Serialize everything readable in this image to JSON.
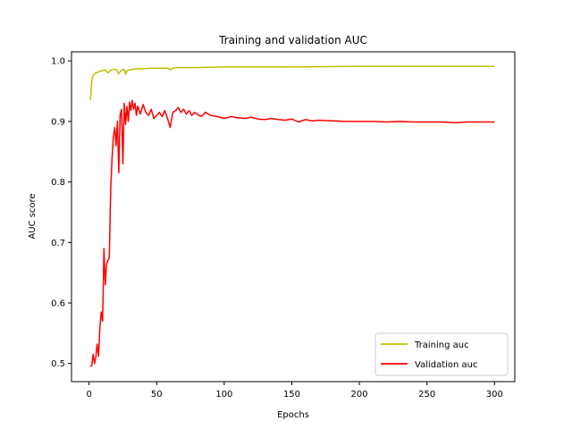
{
  "chart_data": {
    "type": "line",
    "title": "Training and validation AUC",
    "xlabel": "Epochs",
    "ylabel": "AUC score",
    "xlim": [
      -13,
      315
    ],
    "ylim": [
      0.47,
      1.015
    ],
    "xticks": [
      0,
      50,
      100,
      150,
      200,
      250,
      300
    ],
    "yticks": [
      0.5,
      0.6,
      0.7,
      0.8,
      0.9,
      1.0
    ],
    "ytick_labels": [
      "0.5",
      "0.6",
      "0.7",
      "0.8",
      "0.9",
      "1.0"
    ],
    "grid": false,
    "legend_position": "lower right",
    "series": [
      {
        "name": "Training auc",
        "color": "#bfbf00",
        "x": [
          1,
          2,
          3,
          4,
          5,
          6,
          8,
          10,
          12,
          14,
          16,
          18,
          20,
          22,
          24,
          26,
          27,
          28,
          30,
          32,
          35,
          40,
          45,
          50,
          55,
          58,
          60,
          62,
          65,
          80,
          100,
          150,
          200,
          250,
          300
        ],
        "y": [
          0.935,
          0.968,
          0.976,
          0.979,
          0.98,
          0.981,
          0.983,
          0.984,
          0.985,
          0.98,
          0.985,
          0.986,
          0.986,
          0.979,
          0.985,
          0.986,
          0.978,
          0.984,
          0.985,
          0.986,
          0.987,
          0.987,
          0.988,
          0.988,
          0.988,
          0.988,
          0.985,
          0.988,
          0.989,
          0.989,
          0.99,
          0.99,
          0.991,
          0.991,
          0.991
        ]
      },
      {
        "name": "Validation auc",
        "color": "#ff0000",
        "x": [
          1,
          2,
          3,
          4,
          5,
          6,
          7,
          8,
          9,
          10,
          11,
          12,
          13,
          14,
          15,
          16,
          17,
          18,
          19,
          20,
          21,
          22,
          23,
          24,
          25,
          26,
          27,
          28,
          29,
          30,
          31,
          32,
          33,
          34,
          35,
          36,
          38,
          40,
          42,
          44,
          46,
          48,
          50,
          52,
          54,
          56,
          58,
          60,
          62,
          64,
          66,
          68,
          70,
          72,
          74,
          76,
          78,
          80,
          83,
          86,
          90,
          95,
          100,
          105,
          110,
          115,
          120,
          125,
          130,
          135,
          140,
          145,
          150,
          155,
          160,
          165,
          170,
          180,
          190,
          200,
          210,
          220,
          230,
          240,
          250,
          260,
          270,
          280,
          290,
          300
        ],
        "y": [
          0.495,
          0.497,
          0.515,
          0.5,
          0.51,
          0.532,
          0.512,
          0.56,
          0.585,
          0.57,
          0.69,
          0.63,
          0.665,
          0.67,
          0.675,
          0.79,
          0.84,
          0.875,
          0.89,
          0.86,
          0.9,
          0.815,
          0.91,
          0.92,
          0.83,
          0.93,
          0.895,
          0.925,
          0.9,
          0.932,
          0.918,
          0.935,
          0.92,
          0.93,
          0.91,
          0.925,
          0.912,
          0.928,
          0.915,
          0.91,
          0.92,
          0.905,
          0.91,
          0.915,
          0.908,
          0.918,
          0.905,
          0.89,
          0.915,
          0.918,
          0.923,
          0.915,
          0.92,
          0.912,
          0.918,
          0.91,
          0.915,
          0.912,
          0.908,
          0.915,
          0.91,
          0.908,
          0.905,
          0.908,
          0.906,
          0.905,
          0.907,
          0.904,
          0.903,
          0.905,
          0.903,
          0.902,
          0.904,
          0.899,
          0.903,
          0.901,
          0.902,
          0.901,
          0.9,
          0.9,
          0.9,
          0.899,
          0.9,
          0.899,
          0.899,
          0.899,
          0.898,
          0.899,
          0.899,
          0.899
        ]
      }
    ]
  }
}
